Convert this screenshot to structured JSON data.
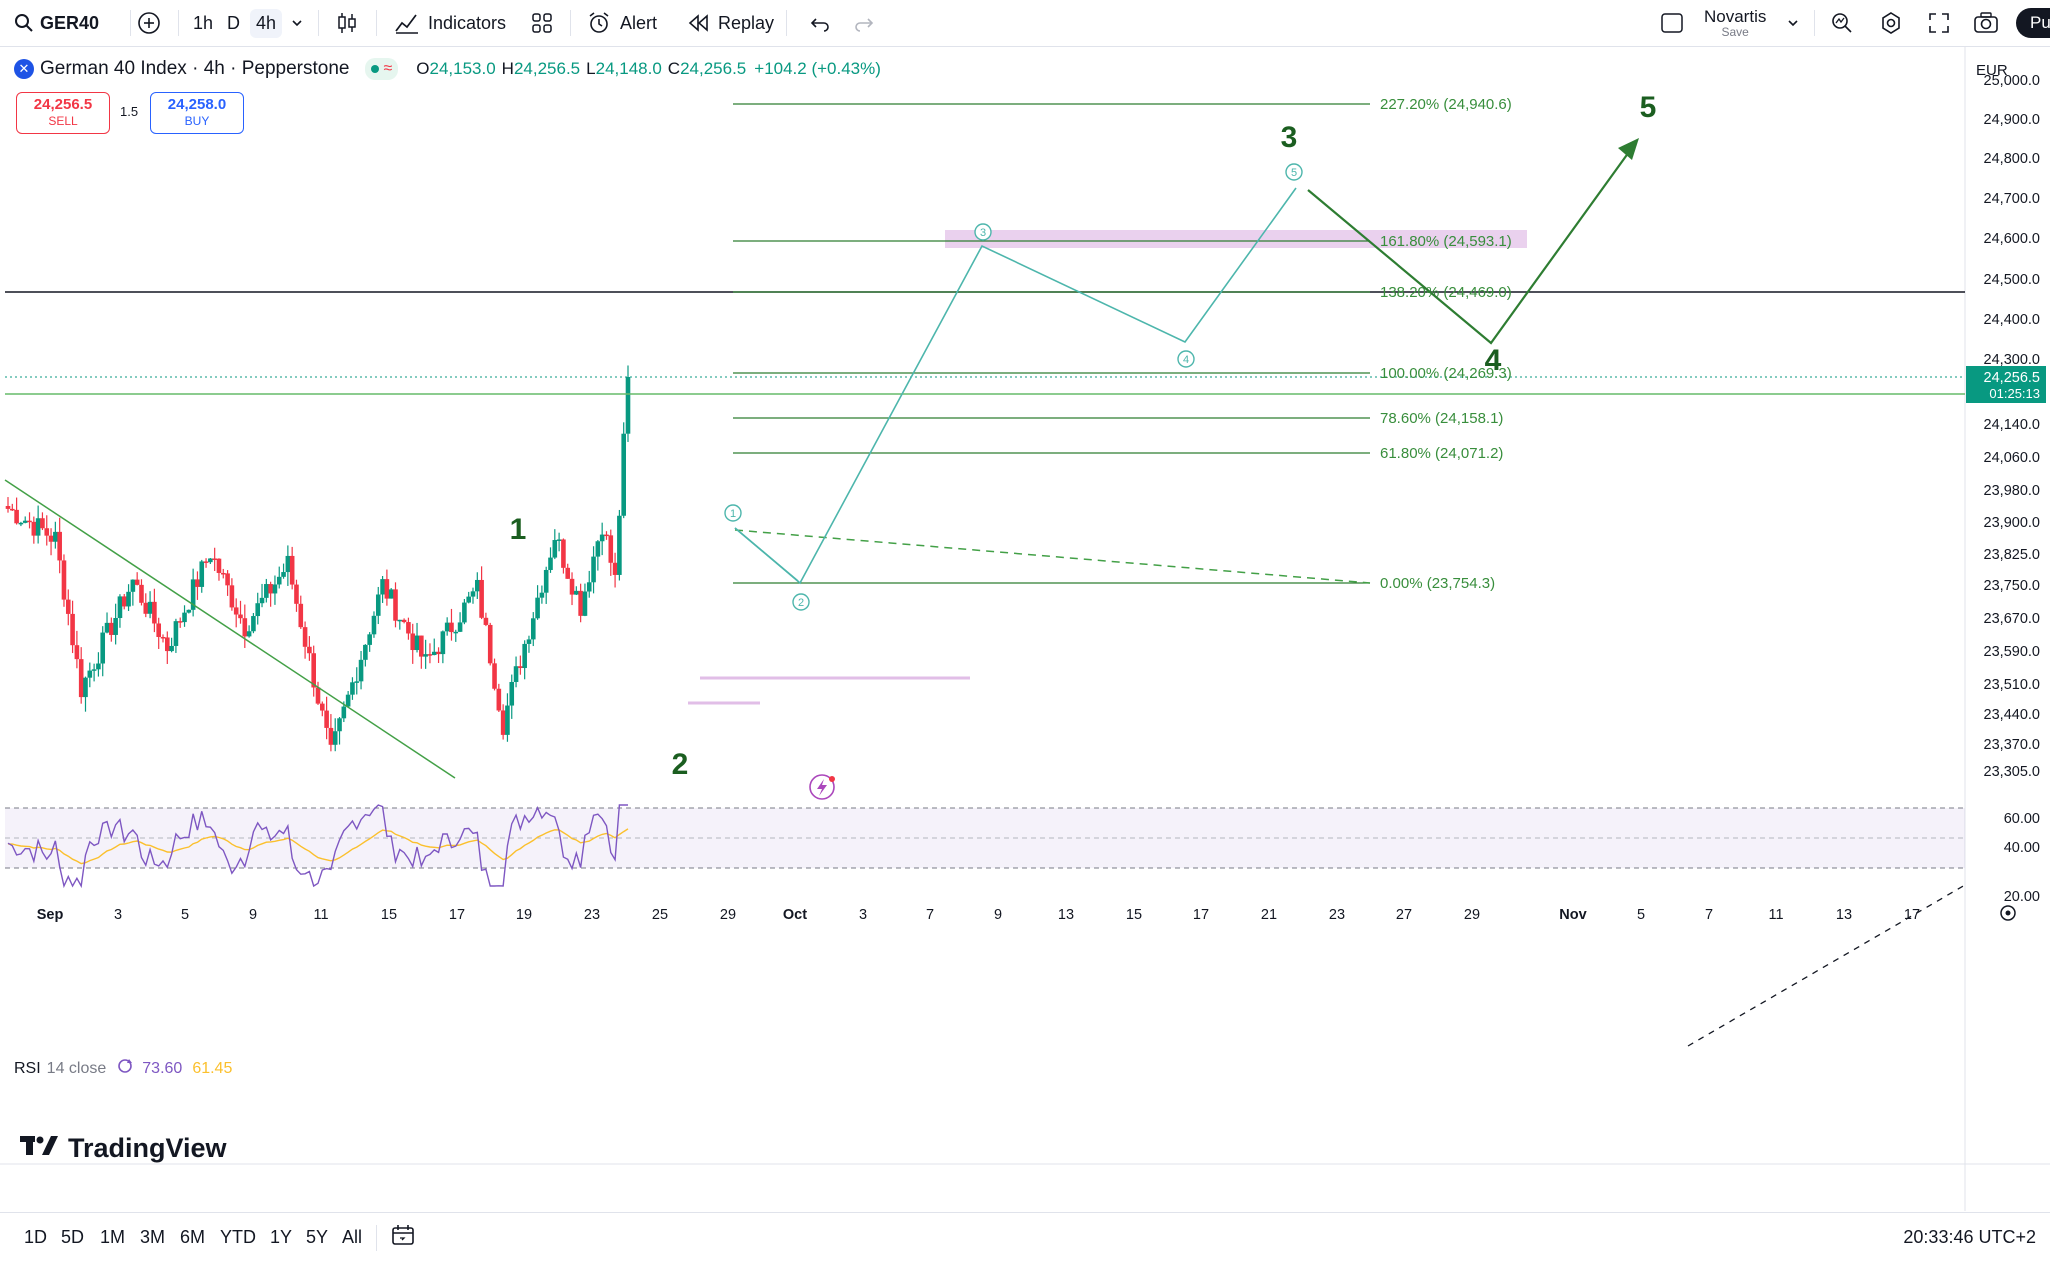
{
  "toolbar": {
    "symbol": "GER40",
    "intervals": [
      "1h",
      "D",
      "4h"
    ],
    "active_interval": "4h",
    "indicators_label": "Indicators",
    "alert_label": "Alert",
    "replay_label": "Replay",
    "layout_name": "Novartis",
    "layout_save": "Save",
    "publish_label": "Pu"
  },
  "legend": {
    "title": "German 40 Index · 4h · Pepperstone",
    "open_label": "O",
    "open": "24,153.0",
    "high_label": "H",
    "high": "24,256.5",
    "low_label": "L",
    "low": "24,148.0",
    "close_label": "C",
    "close": "24,256.5",
    "change": "+104.2 (+0.43%)"
  },
  "trade": {
    "sell_price": "24,256.5",
    "sell_label": "SELL",
    "spread": "1.5",
    "buy_price": "24,258.0",
    "buy_label": "BUY"
  },
  "price_axis": {
    "currency": "EUR",
    "ticks": [
      "25,000.0",
      "24,900.0",
      "24,800.0",
      "24,700.0",
      "24,600.0",
      "24,500.0",
      "24,400.0",
      "24,300.0",
      "24,140.0",
      "24,060.0",
      "23,980.0",
      "23,900.0",
      "23,825.0",
      "23,750.0",
      "23,670.0",
      "23,590.0",
      "23,510.0",
      "23,440.0",
      "23,370.0",
      "23,305.0"
    ],
    "current_price": "24,256.5",
    "countdown": "01:25:13"
  },
  "rsi": {
    "label": "RSI",
    "params": "14 close",
    "value": "73.60",
    "ma_value": "61.45",
    "ticks": [
      "60.00",
      "40.00",
      "20.00"
    ]
  },
  "fib_levels": [
    {
      "label": "227.20% (24,940.6)"
    },
    {
      "label": "161.80% (24,593.1)"
    },
    {
      "label": "138.20% (24,469.0)"
    },
    {
      "label": "100.00% (24,269.3)"
    },
    {
      "label": "78.60% (24,158.1)"
    },
    {
      "label": "61.80% (24,071.2)"
    },
    {
      "label": "0.00% (23,754.3)"
    }
  ],
  "waves": {
    "major": [
      "1",
      "2",
      "3",
      "4",
      "5"
    ],
    "minor": [
      "1",
      "2",
      "3",
      "4",
      "5"
    ]
  },
  "time_axis": [
    "Sep",
    "3",
    "5",
    "9",
    "11",
    "15",
    "17",
    "19",
    "23",
    "25",
    "29",
    "Oct",
    "3",
    "7",
    "9",
    "13",
    "15",
    "17",
    "21",
    "23",
    "27",
    "29",
    "Nov",
    "5",
    "7",
    "11",
    "13",
    "17"
  ],
  "ranges": [
    "1D",
    "5D",
    "1M",
    "3M",
    "6M",
    "YTD",
    "1Y",
    "5Y",
    "All"
  ],
  "clock": "20:33:46 UTC+2",
  "watermark": "TradingView",
  "colors": {
    "up": "#089981",
    "down": "#f23645",
    "fib": "#2e7d32",
    "projection": "#4db6ac",
    "wave_label": "#1b5e20",
    "rsi": "#7e57c2",
    "rsi_ma": "#fbc02d"
  }
}
